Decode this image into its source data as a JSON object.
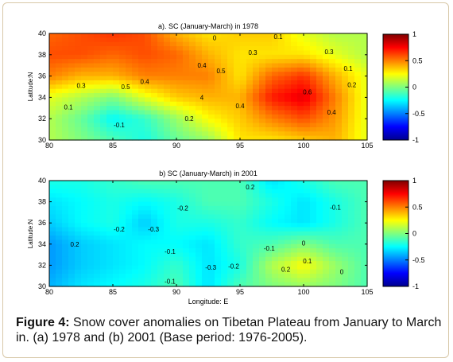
{
  "chart_data": [
    {
      "type": "heatmap",
      "title": "a). SC (January-March) in 1978",
      "ylabel": "Latitude:N",
      "xlabel": "",
      "xlim": [
        80,
        105
      ],
      "ylim": [
        30,
        40
      ],
      "x_ticks": [
        "80",
        "85",
        "90",
        "95",
        "100",
        "105"
      ],
      "y_ticks": [
        "30",
        "32",
        "34",
        "36",
        "38",
        "40"
      ],
      "colorbar": {
        "min": -1,
        "max": 1,
        "ticks": [
          "1",
          "0.5",
          "0",
          "-0.5",
          "-1"
        ]
      },
      "grid": {
        "x": [
          80,
          82.5,
          85,
          87.5,
          90,
          92.5,
          95,
          97.5,
          100,
          102.5,
          105
        ],
        "y": [
          30,
          32,
          34,
          36,
          38,
          40
        ]
      },
      "values": [
        [
          0.1,
          0.0,
          -0.1,
          -0.2,
          -0.05,
          0.05,
          0.3,
          0.3,
          0.35,
          0.4,
          0.2
        ],
        [
          0.1,
          -0.05,
          -0.25,
          -0.15,
          0.05,
          0.25,
          0.35,
          0.5,
          0.6,
          0.45,
          0.2
        ],
        [
          0.2,
          0.1,
          0.0,
          0.2,
          0.35,
          0.4,
          0.4,
          0.7,
          0.8,
          0.5,
          0.2
        ],
        [
          0.5,
          0.4,
          0.4,
          0.5,
          0.5,
          0.5,
          0.3,
          0.55,
          0.65,
          0.4,
          0.2
        ],
        [
          0.6,
          0.6,
          0.55,
          0.6,
          0.55,
          0.4,
          0.3,
          0.3,
          0.3,
          0.2,
          0.1
        ],
        [
          0.55,
          0.6,
          0.65,
          0.6,
          0.4,
          0.3,
          0.35,
          0.35,
          0.2,
          0.1,
          0.1
        ]
      ],
      "contour_labels": [
        {
          "lon": 93.0,
          "lat": 39.6,
          "text": "0"
        },
        {
          "lon": 96.0,
          "lat": 38.2,
          "text": "0.3"
        },
        {
          "lon": 98.0,
          "lat": 39.7,
          "text": "0.1"
        },
        {
          "lon": 102.0,
          "lat": 38.3,
          "text": "0.3"
        },
        {
          "lon": 103.5,
          "lat": 36.7,
          "text": "0.1"
        },
        {
          "lon": 92.0,
          "lat": 37.0,
          "text": "0.4"
        },
        {
          "lon": 93.5,
          "lat": 36.5,
          "text": "0.5"
        },
        {
          "lon": 87.5,
          "lat": 35.5,
          "text": "0.4"
        },
        {
          "lon": 86.0,
          "lat": 35.0,
          "text": "0.5"
        },
        {
          "lon": 82.5,
          "lat": 35.1,
          "text": "0.3"
        },
        {
          "lon": 81.5,
          "lat": 33.1,
          "text": "0.1"
        },
        {
          "lon": 85.5,
          "lat": 31.4,
          "text": "-0.1"
        },
        {
          "lon": 92.0,
          "lat": 34.0,
          "text": "4"
        },
        {
          "lon": 95.0,
          "lat": 33.2,
          "text": "0.4"
        },
        {
          "lon": 100.3,
          "lat": 34.5,
          "text": "0.6"
        },
        {
          "lon": 102.2,
          "lat": 32.6,
          "text": "0.4"
        },
        {
          "lon": 103.8,
          "lat": 35.2,
          "text": "0.2"
        },
        {
          "lon": 91.0,
          "lat": 32.0,
          "text": "0.2"
        }
      ]
    },
    {
      "type": "heatmap",
      "title": "b) SC (January-March) in 2001",
      "ylabel": "Latitude:N",
      "xlabel": "Longitude: E",
      "xlim": [
        80,
        105
      ],
      "ylim": [
        30,
        40
      ],
      "x_ticks": [
        "80",
        "85",
        "90",
        "95",
        "100",
        "105"
      ],
      "y_ticks": [
        "30",
        "32",
        "34",
        "36",
        "38",
        "40"
      ],
      "colorbar": {
        "min": -1,
        "max": 1,
        "ticks": [
          "1",
          "0.5",
          "0",
          "-0.5",
          "-1"
        ]
      },
      "grid": {
        "x": [
          80,
          82.5,
          85,
          87.5,
          90,
          92.5,
          95,
          97.5,
          100,
          102.5,
          105
        ],
        "y": [
          30,
          32,
          34,
          36,
          38,
          40
        ]
      },
      "values": [
        [
          -0.4,
          -0.3,
          -0.25,
          -0.2,
          -0.1,
          -0.3,
          -0.1,
          0.0,
          0.05,
          0.0,
          -0.1
        ],
        [
          -0.45,
          -0.35,
          -0.3,
          -0.25,
          -0.15,
          -0.3,
          -0.2,
          0.1,
          0.25,
          0.05,
          -0.1
        ],
        [
          -0.45,
          -0.35,
          -0.3,
          -0.25,
          -0.25,
          -0.3,
          -0.15,
          -0.1,
          0.0,
          -0.1,
          -0.1
        ],
        [
          -0.35,
          -0.25,
          -0.2,
          -0.35,
          -0.2,
          -0.2,
          -0.15,
          -0.25,
          -0.3,
          -0.2,
          -0.1
        ],
        [
          -0.3,
          -0.25,
          -0.2,
          -0.25,
          -0.2,
          -0.1,
          -0.1,
          -0.2,
          -0.3,
          -0.2,
          -0.1
        ],
        [
          -0.2,
          -0.2,
          -0.15,
          -0.1,
          -0.1,
          -0.1,
          -0.1,
          -0.3,
          -0.2,
          -0.1,
          -0.1
        ]
      ],
      "contour_labels": [
        {
          "lon": 95.8,
          "lat": 39.4,
          "text": "0.2"
        },
        {
          "lon": 102.5,
          "lat": 37.5,
          "text": "-0.1"
        },
        {
          "lon": 90.5,
          "lat": 37.4,
          "text": "-0.2"
        },
        {
          "lon": 85.5,
          "lat": 35.4,
          "text": "-0.2"
        },
        {
          "lon": 88.2,
          "lat": 35.4,
          "text": "-0.3"
        },
        {
          "lon": 82.0,
          "lat": 34.0,
          "text": "0.2"
        },
        {
          "lon": 89.5,
          "lat": 33.3,
          "text": "-0.1"
        },
        {
          "lon": 92.7,
          "lat": 31.8,
          "text": "-0.3"
        },
        {
          "lon": 94.5,
          "lat": 31.9,
          "text": "-0.2"
        },
        {
          "lon": 97.3,
          "lat": 33.6,
          "text": "-0.1"
        },
        {
          "lon": 100.0,
          "lat": 34.1,
          "text": "0"
        },
        {
          "lon": 100.3,
          "lat": 32.4,
          "text": "0.1"
        },
        {
          "lon": 98.6,
          "lat": 31.6,
          "text": "0.2"
        },
        {
          "lon": 103.0,
          "lat": 31.4,
          "text": "0"
        },
        {
          "lon": 89.5,
          "lat": 30.5,
          "text": "-0.1"
        }
      ]
    }
  ],
  "caption": {
    "label": "Figure 4:",
    "text": " Snow cover anomalies on Tibetan Plateau from January to March in. (a) 1978 and (b) 2001 (Base period: 1976-2005)."
  }
}
